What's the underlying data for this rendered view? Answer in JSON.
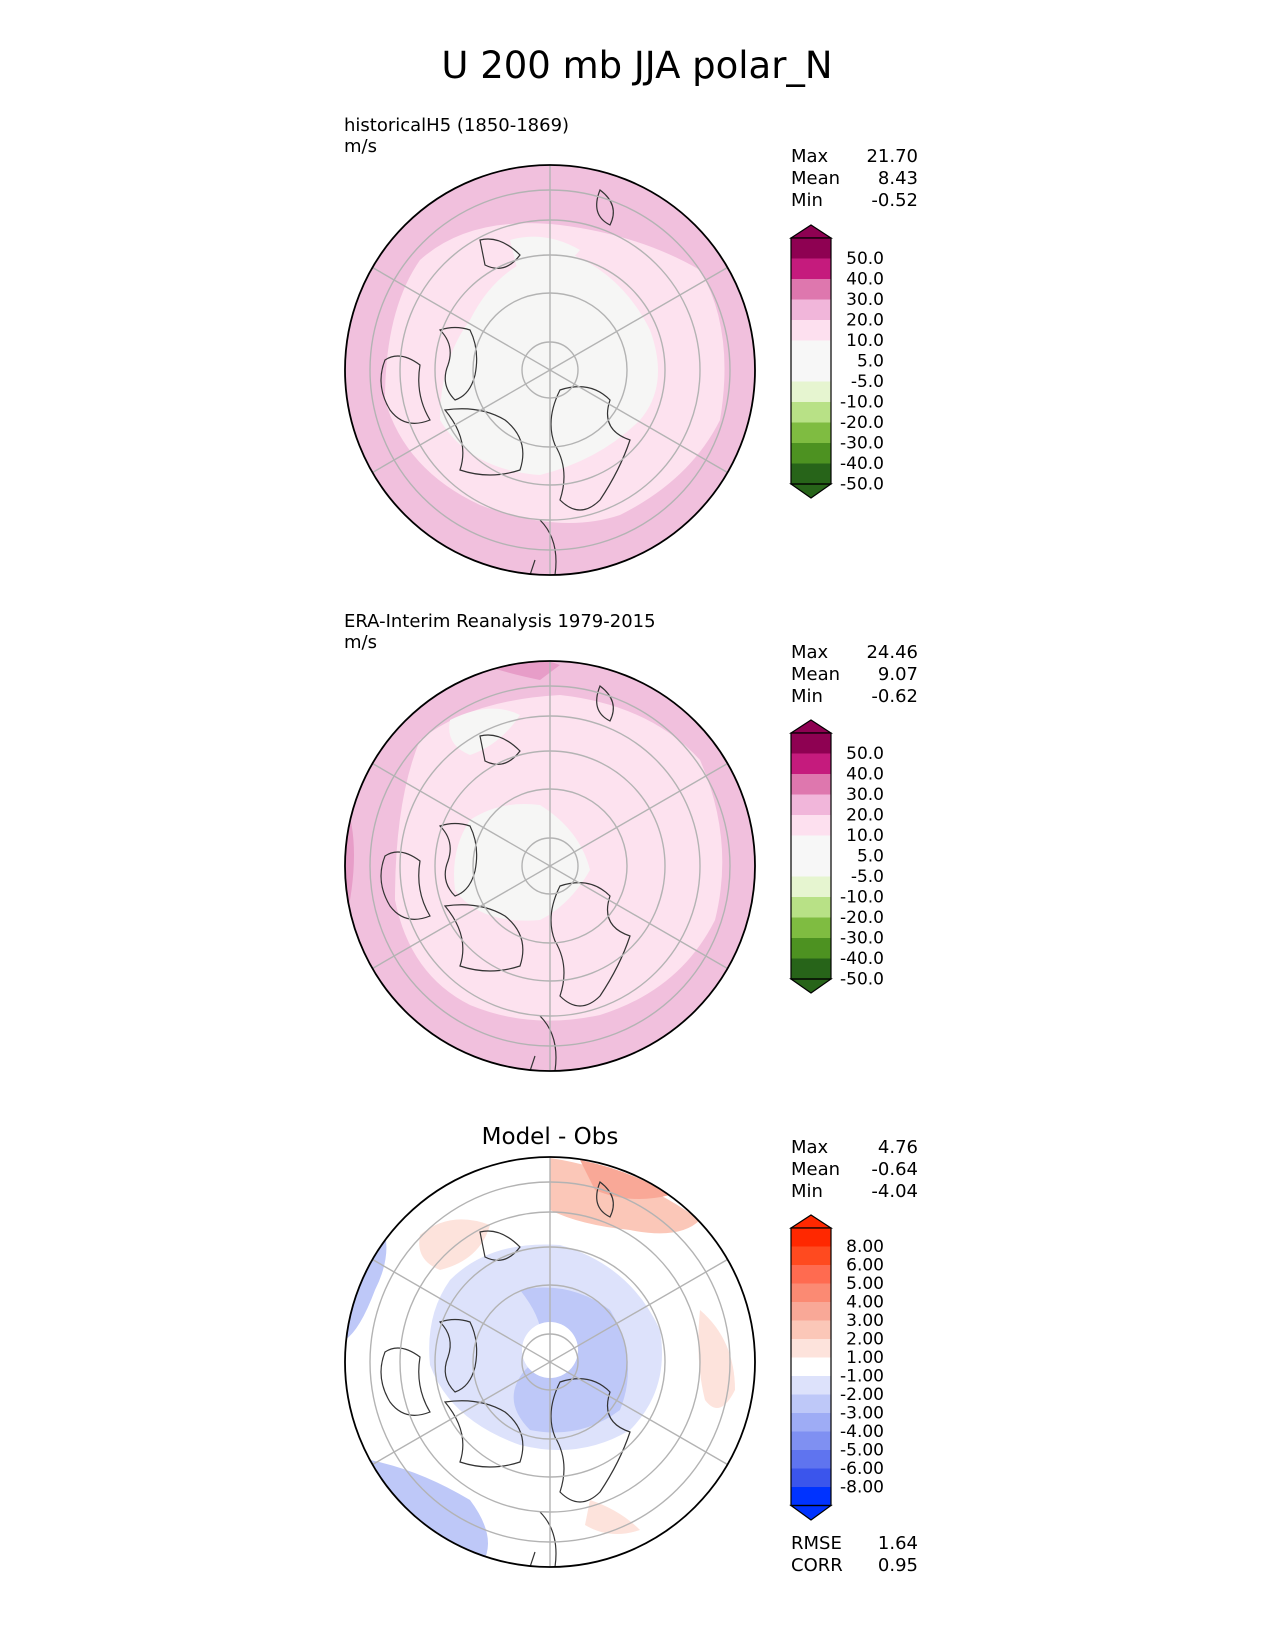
{
  "title": "U 200 mb JJA polar_N",
  "chart_data": [
    {
      "type": "heatmap",
      "projection": "north polar stereographic",
      "subtitle": "historicalH5 (1850-1869)",
      "units": "m/s",
      "stats": [
        {
          "label": "Max",
          "value": "21.70"
        },
        {
          "label": "Mean",
          "value": "8.43"
        },
        {
          "label": "Min",
          "value": "-0.52"
        }
      ],
      "colorbar_ticks": [
        "50.0",
        "40.0",
        "30.0",
        "20.0",
        "10.0",
        "5.0",
        "-5.0",
        "-10.0",
        "-20.0",
        "-30.0",
        "-40.0",
        "-50.0"
      ],
      "colorbar_colors": [
        "#8e0152",
        "#c51b7d",
        "#de77ae",
        "#f1b6da",
        "#fde0ef",
        "#f7f7f7",
        "#f7f7f7",
        "#e6f5d0",
        "#b8e186",
        "#7fbc41",
        "#4d9221",
        "#276419",
        "#276419"
      ]
    },
    {
      "type": "heatmap",
      "projection": "north polar stereographic",
      "subtitle": "ERA-Interim Reanalysis 1979-2015",
      "units": "m/s",
      "stats": [
        {
          "label": "Max",
          "value": "24.46"
        },
        {
          "label": "Mean",
          "value": "9.07"
        },
        {
          "label": "Min",
          "value": "-0.62"
        }
      ],
      "colorbar_ticks": [
        "50.0",
        "40.0",
        "30.0",
        "20.0",
        "10.0",
        "5.0",
        "-5.0",
        "-10.0",
        "-20.0",
        "-30.0",
        "-40.0",
        "-50.0"
      ],
      "colorbar_colors": [
        "#8e0152",
        "#c51b7d",
        "#de77ae",
        "#f1b6da",
        "#fde0ef",
        "#f7f7f7",
        "#f7f7f7",
        "#e6f5d0",
        "#b8e186",
        "#7fbc41",
        "#4d9221",
        "#276419",
        "#276419"
      ]
    },
    {
      "type": "heatmap",
      "projection": "north polar stereographic",
      "subtitle": "Model - Obs",
      "units": "",
      "stats": [
        {
          "label": "Max",
          "value": "4.76"
        },
        {
          "label": "Mean",
          "value": "-0.64"
        },
        {
          "label": "Min",
          "value": "-4.04"
        }
      ],
      "colorbar_ticks": [
        "8.00",
        "6.00",
        "5.00",
        "4.00",
        "3.00",
        "2.00",
        "1.00",
        "-1.00",
        "-2.00",
        "-3.00",
        "-4.00",
        "-5.00",
        "-6.00",
        "-8.00"
      ],
      "colorbar_colors": [
        "#ff2800",
        "#ff4a1f",
        "#ff6b50",
        "#fb8a73",
        "#f9a897",
        "#fbc7b8",
        "#fde3dc",
        "#ffffff",
        "#dde2fb",
        "#bec8f8",
        "#9eacf5",
        "#7f90f2",
        "#5f74ef",
        "#3b55ec",
        "#0033ff"
      ],
      "metrics": [
        {
          "label": "RMSE",
          "value": "1.64"
        },
        {
          "label": "CORR",
          "value": "0.95"
        }
      ]
    }
  ]
}
